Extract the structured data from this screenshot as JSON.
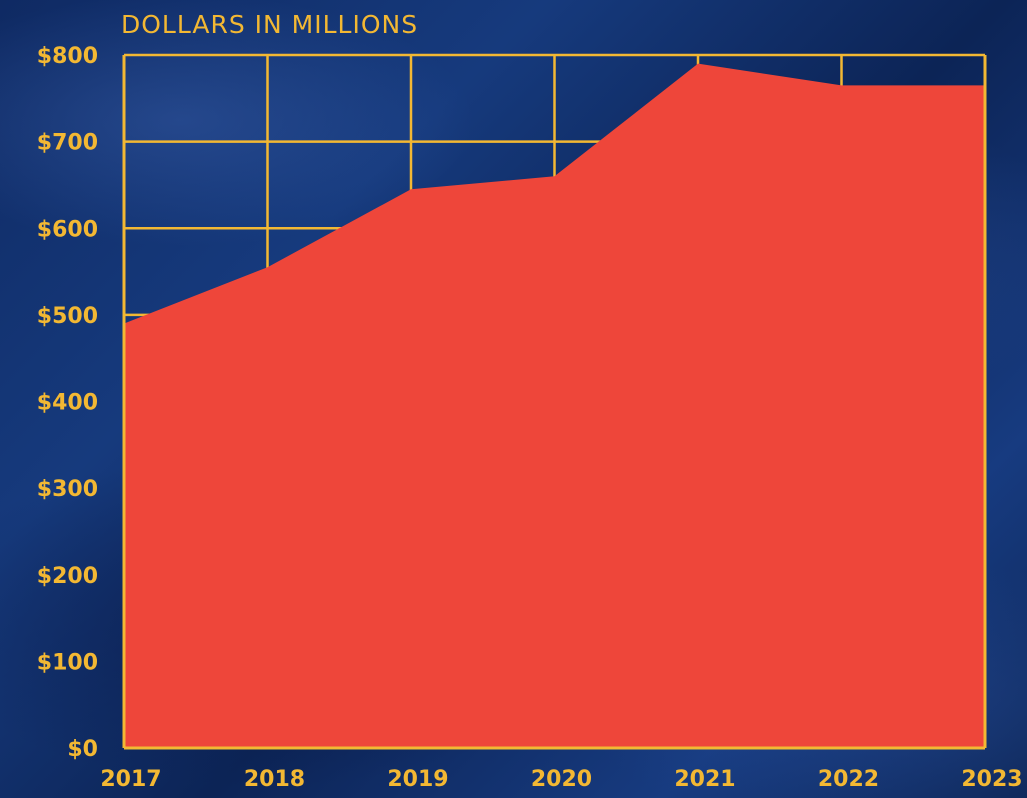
{
  "chart_data": {
    "type": "area",
    "title": "",
    "unit_label": "DOLLARS IN MILLIONS",
    "x": [
      "2017",
      "2018",
      "2019",
      "2020",
      "2021",
      "2022",
      "2023"
    ],
    "y_ticks": [
      "$0",
      "$100",
      "$200",
      "$300",
      "$400",
      "$500",
      "$600",
      "$700",
      "$800"
    ],
    "ylim": [
      0,
      800
    ],
    "series": [
      {
        "values": [
          490,
          555,
          645,
          660,
          790,
          765,
          765
        ]
      }
    ],
    "grid": true,
    "colors": {
      "fill": "#ee463a",
      "grid": "#f3b833",
      "text": "#f3b833",
      "background": "#122e6b"
    }
  }
}
